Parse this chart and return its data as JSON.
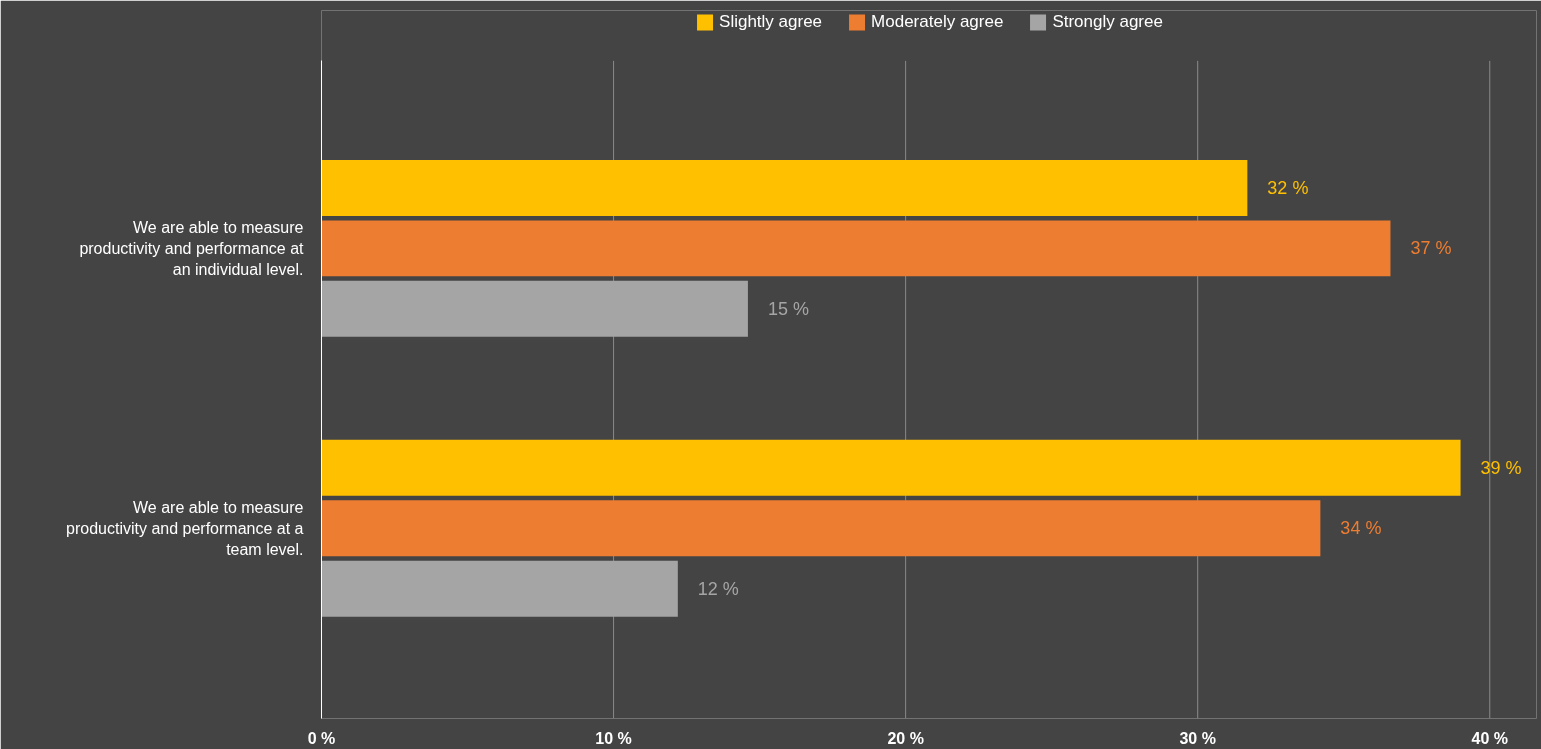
{
  "chart_data": {
    "type": "bar",
    "orientation": "horizontal",
    "categories": [
      "We are able to measure productivity and performance at an individual level.",
      "We are able to measure productivity and performance at a team level."
    ],
    "series": [
      {
        "name": "Slightly agree",
        "color": "#ffc000",
        "values": [
          31.7,
          39.0
        ],
        "value_labels": [
          "32 %",
          "39 %"
        ]
      },
      {
        "name": "Moderately agree",
        "color": "#ed7d31",
        "values": [
          36.6,
          34.2
        ],
        "value_labels": [
          "37 %",
          "34 %"
        ]
      },
      {
        "name": "Strongly agree",
        "color": "#a5a5a5",
        "values": [
          14.6,
          12.2
        ],
        "value_labels": [
          "15 %",
          "12 %"
        ]
      }
    ],
    "xlim": [
      0,
      40
    ],
    "xticks": [
      {
        "value": 0,
        "label": "0 %"
      },
      {
        "value": 10,
        "label": "10 %"
      },
      {
        "value": 20,
        "label": "20 %"
      },
      {
        "value": 30,
        "label": "30 %"
      },
      {
        "value": 40,
        "label": "40 %"
      }
    ],
    "grid": "x",
    "legend": "top"
  }
}
